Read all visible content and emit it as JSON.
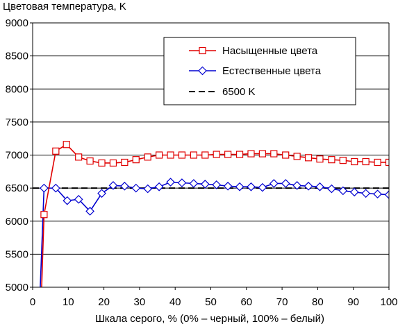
{
  "chart_data": {
    "type": "line",
    "title": "",
    "ylabel": "Цветовая температура, K",
    "xlabel": "Шкала серого, % (0% – черный, 100% – белый)",
    "xlim": [
      0,
      100
    ],
    "ylim": [
      5000,
      9000
    ],
    "xticks": [
      "0",
      "10",
      "20",
      "30",
      "40",
      "50",
      "60",
      "70",
      "80",
      "90",
      "100"
    ],
    "yticks": [
      "5000",
      "5500",
      "6000",
      "6500",
      "7000",
      "7500",
      "8000",
      "8500",
      "9000"
    ],
    "grid": "horizontal",
    "legend_position": "top-right",
    "series": [
      {
        "name": "Насыщенные цвета",
        "color": "#e00000",
        "marker": "square",
        "points": [
          [
            2.5,
            4950
          ],
          [
            3.2,
            6100
          ],
          [
            6.5,
            7060
          ],
          [
            9.5,
            7160
          ],
          [
            12.9,
            6970
          ],
          [
            16.1,
            6910
          ],
          [
            19.4,
            6880
          ],
          [
            22.6,
            6880
          ],
          [
            25.8,
            6890
          ],
          [
            29,
            6930
          ],
          [
            32.3,
            6970
          ],
          [
            35.5,
            7000
          ],
          [
            38.7,
            7000
          ],
          [
            41.9,
            7000
          ],
          [
            45.2,
            7000
          ],
          [
            48.4,
            7000
          ],
          [
            51.6,
            7010
          ],
          [
            54.8,
            7010
          ],
          [
            58.1,
            7010
          ],
          [
            61.3,
            7020
          ],
          [
            64.5,
            7020
          ],
          [
            67.7,
            7020
          ],
          [
            71,
            7000
          ],
          [
            74.2,
            6980
          ],
          [
            77.4,
            6960
          ],
          [
            80.6,
            6940
          ],
          [
            83.9,
            6930
          ],
          [
            87.1,
            6920
          ],
          [
            90.3,
            6900
          ],
          [
            93.5,
            6900
          ],
          [
            96.8,
            6890
          ],
          [
            100,
            6890
          ]
        ]
      },
      {
        "name": "Естественные цвета",
        "color": "#0000d0",
        "marker": "diamond",
        "points": [
          [
            2.1,
            4950
          ],
          [
            3.2,
            6500
          ],
          [
            6.5,
            6500
          ],
          [
            9.7,
            6310
          ],
          [
            12.9,
            6330
          ],
          [
            16.1,
            6150
          ],
          [
            19.4,
            6420
          ],
          [
            22.6,
            6540
          ],
          [
            25.8,
            6530
          ],
          [
            29,
            6500
          ],
          [
            32.3,
            6490
          ],
          [
            35.5,
            6520
          ],
          [
            38.7,
            6590
          ],
          [
            41.9,
            6580
          ],
          [
            45.2,
            6570
          ],
          [
            48.4,
            6560
          ],
          [
            51.6,
            6550
          ],
          [
            54.8,
            6530
          ],
          [
            58.1,
            6520
          ],
          [
            61.3,
            6520
          ],
          [
            64.5,
            6510
          ],
          [
            67.7,
            6570
          ],
          [
            71,
            6570
          ],
          [
            74.2,
            6540
          ],
          [
            77.4,
            6530
          ],
          [
            80.6,
            6520
          ],
          [
            83.9,
            6490
          ],
          [
            87.1,
            6460
          ],
          [
            90.3,
            6440
          ],
          [
            93.5,
            6420
          ],
          [
            96.8,
            6410
          ],
          [
            100,
            6400
          ]
        ]
      },
      {
        "name": "6500 K",
        "color": "#000000",
        "style": "dashed",
        "points": [
          [
            0,
            6500
          ],
          [
            100,
            6500
          ]
        ]
      }
    ]
  }
}
